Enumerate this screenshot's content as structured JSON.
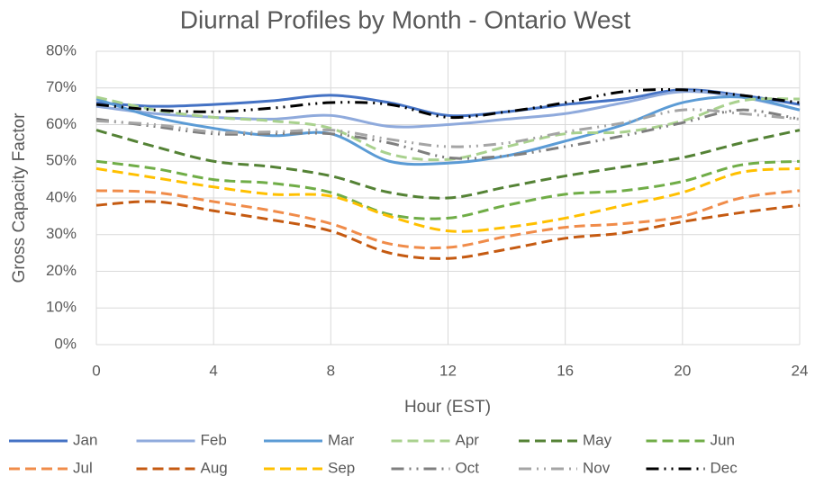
{
  "chart_data": {
    "type": "line",
    "title": "Diurnal Profiles by Month - Ontario West",
    "x_label": "Hour (EST)",
    "y_label": "Gross Capacity Factor",
    "x": [
      0,
      2,
      4,
      6,
      8,
      10,
      12,
      14,
      16,
      18,
      20,
      22,
      24
    ],
    "xlim": [
      0,
      24
    ],
    "xticks": [
      0,
      4,
      8,
      12,
      16,
      20,
      24
    ],
    "ylim": [
      0,
      80
    ],
    "yticks": [
      {
        "value": 0,
        "label": "0%"
      },
      {
        "value": 10,
        "label": "10%"
      },
      {
        "value": 20,
        "label": "20%"
      },
      {
        "value": 30,
        "label": "30%"
      },
      {
        "value": 40,
        "label": "40%"
      },
      {
        "value": 50,
        "label": "50%"
      },
      {
        "value": 60,
        "label": "60%"
      },
      {
        "value": 70,
        "label": "70%"
      },
      {
        "value": 80,
        "label": "80%"
      }
    ],
    "grid": true,
    "legend": "bottom",
    "smooth": true,
    "series": [
      {
        "name": "Jan",
        "color": "#4472c4",
        "dash": "solid",
        "values": [
          66,
          65,
          65.5,
          66.5,
          68,
          66,
          62.5,
          63.5,
          65.5,
          67,
          69.5,
          68,
          65.5
        ]
      },
      {
        "name": "Feb",
        "color": "#8faadc",
        "dash": "solid",
        "values": [
          65,
          63,
          62,
          61.5,
          62.5,
          59.5,
          60,
          61.5,
          63,
          66,
          69,
          67.5,
          64
        ]
      },
      {
        "name": "Mar",
        "color": "#5b9bd5",
        "dash": "solid",
        "values": [
          67,
          62,
          59,
          57,
          57.5,
          50,
          49.5,
          51.5,
          55.5,
          60,
          66,
          67.5,
          64
        ]
      },
      {
        "name": "Apr",
        "color": "#a9d18e",
        "dash": "dash",
        "values": [
          67.5,
          64,
          62,
          61,
          59,
          52,
          50.5,
          54,
          57.5,
          58,
          61,
          66.5,
          67
        ]
      },
      {
        "name": "May",
        "color": "#548235",
        "dash": "dash",
        "values": [
          58.5,
          54,
          50,
          48.5,
          46,
          41.5,
          40,
          43,
          46,
          48.5,
          51,
          55,
          58.5
        ]
      },
      {
        "name": "Jun",
        "color": "#70ad47",
        "dash": "dash",
        "values": [
          50,
          48,
          45,
          44,
          41.5,
          35.5,
          34.5,
          38,
          41,
          42,
          44.5,
          49,
          50
        ]
      },
      {
        "name": "Jul",
        "color": "#f08c4a",
        "dash": "dash",
        "values": [
          42,
          41.5,
          39,
          36.5,
          33,
          27.5,
          26.5,
          29.5,
          32,
          33,
          35,
          40,
          42
        ]
      },
      {
        "name": "Aug",
        "color": "#c55a11",
        "dash": "dash",
        "values": [
          38,
          39,
          36.5,
          34,
          31,
          25,
          23.5,
          26,
          29,
          30.5,
          33.5,
          36,
          38
        ]
      },
      {
        "name": "Sep",
        "color": "#ffc000",
        "dash": "dash",
        "values": [
          48,
          45.5,
          43,
          41,
          40.5,
          35,
          31,
          32,
          34.5,
          38,
          41.5,
          47,
          48
        ]
      },
      {
        "name": "Oct",
        "color": "#7f7f7f",
        "dash": "dashdot",
        "values": [
          61.5,
          59.5,
          57.5,
          57.5,
          57.5,
          55,
          51,
          51.5,
          54,
          57,
          60.5,
          64,
          61.5
        ]
      },
      {
        "name": "Nov",
        "color": "#a5a5a5",
        "dash": "dashdot",
        "values": [
          61,
          60,
          58,
          58,
          58.5,
          56,
          54,
          55,
          58,
          60.5,
          64,
          63,
          61.5
        ]
      },
      {
        "name": "Dec",
        "color": "#000000",
        "dash": "dashdot",
        "values": [
          65.5,
          64,
          63.5,
          64.5,
          66,
          65.5,
          62,
          63.5,
          66,
          69,
          69.5,
          68,
          66
        ]
      }
    ]
  }
}
